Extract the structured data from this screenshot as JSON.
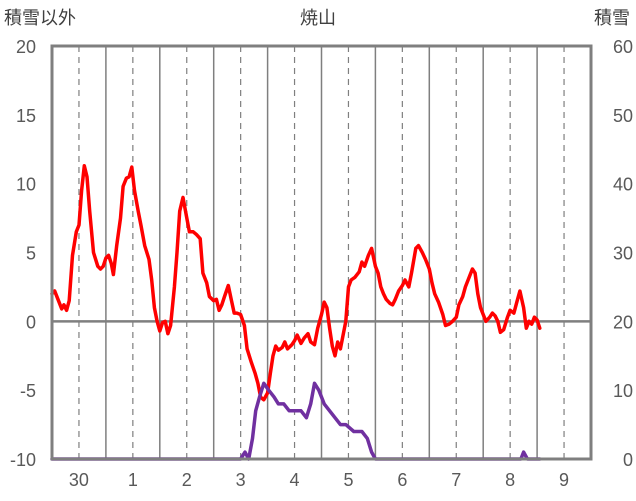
{
  "chart_data": {
    "type": "line",
    "title": "焼山",
    "y_left_label": "積雪以外",
    "y_right_label": "積雪",
    "y_left_range": [
      -10,
      20
    ],
    "y_left_ticks": [
      "20",
      "15",
      "10",
      "5",
      "0",
      "-5",
      "-10"
    ],
    "y_right_range": [
      0,
      60
    ],
    "y_right_ticks": [
      "60",
      "50",
      "40",
      "30",
      "20",
      "10",
      "0"
    ],
    "x_range": [
      29.5,
      9.5
    ],
    "x_tick_labels": [
      "30",
      "1",
      "2",
      "3",
      "4",
      "5",
      "6",
      "7",
      "8",
      "9"
    ],
    "grid": true,
    "legend": "none",
    "series": [
      {
        "key": "temperature",
        "axis": "left",
        "color": "#ff0000",
        "points": [
          [
            0.0,
            2.0
          ],
          [
            0.05,
            2.2
          ],
          [
            0.12,
            1.5
          ],
          [
            0.18,
            0.9
          ],
          [
            0.22,
            1.2
          ],
          [
            0.27,
            0.8
          ],
          [
            0.32,
            1.5
          ],
          [
            0.38,
            4.8
          ],
          [
            0.45,
            6.5
          ],
          [
            0.5,
            7.0
          ],
          [
            0.55,
            9.5
          ],
          [
            0.6,
            11.3
          ],
          [
            0.65,
            10.5
          ],
          [
            0.7,
            8.0
          ],
          [
            0.77,
            5.0
          ],
          [
            0.85,
            4.0
          ],
          [
            0.9,
            3.8
          ],
          [
            0.95,
            4.0
          ],
          [
            1.0,
            4.6
          ],
          [
            1.05,
            4.8
          ],
          [
            1.1,
            4.2
          ],
          [
            1.14,
            3.4
          ],
          [
            1.2,
            5.5
          ],
          [
            1.27,
            7.5
          ],
          [
            1.32,
            9.8
          ],
          [
            1.38,
            10.4
          ],
          [
            1.43,
            10.5
          ],
          [
            1.48,
            11.2
          ],
          [
            1.53,
            9.5
          ],
          [
            1.6,
            8.0
          ],
          [
            1.65,
            7.0
          ],
          [
            1.72,
            5.5
          ],
          [
            1.8,
            4.5
          ],
          [
            1.85,
            3.0
          ],
          [
            1.9,
            1.0
          ],
          [
            1.95,
            0.0
          ],
          [
            2.0,
            -0.7
          ],
          [
            2.05,
            -0.1
          ],
          [
            2.1,
            0.0
          ],
          [
            2.15,
            -0.9
          ],
          [
            2.2,
            -0.3
          ],
          [
            2.27,
            2.5
          ],
          [
            2.32,
            5.0
          ],
          [
            2.37,
            8.0
          ],
          [
            2.43,
            9.0
          ],
          [
            2.5,
            7.5
          ],
          [
            2.55,
            6.5
          ],
          [
            2.62,
            6.5
          ],
          [
            2.68,
            6.3
          ],
          [
            2.75,
            6.0
          ],
          [
            2.8,
            3.5
          ],
          [
            2.87,
            2.8
          ],
          [
            2.92,
            1.8
          ],
          [
            3.0,
            1.5
          ],
          [
            3.05,
            1.6
          ],
          [
            3.1,
            0.8
          ],
          [
            3.15,
            1.2
          ],
          [
            3.2,
            1.8
          ],
          [
            3.27,
            2.6
          ],
          [
            3.33,
            1.5
          ],
          [
            3.38,
            0.6
          ],
          [
            3.43,
            0.6
          ],
          [
            3.5,
            0.5
          ],
          [
            3.57,
            -0.3
          ],
          [
            3.62,
            -2.0
          ],
          [
            3.7,
            -3.0
          ],
          [
            3.77,
            -3.8
          ],
          [
            3.82,
            -4.5
          ],
          [
            3.87,
            -5.5
          ],
          [
            3.93,
            -5.7
          ],
          [
            4.0,
            -5.2
          ],
          [
            4.05,
            -3.8
          ],
          [
            4.1,
            -2.5
          ],
          [
            4.15,
            -1.8
          ],
          [
            4.2,
            -2.1
          ],
          [
            4.27,
            -1.9
          ],
          [
            4.32,
            -1.5
          ],
          [
            4.37,
            -2.0
          ],
          [
            4.45,
            -1.7
          ],
          [
            4.5,
            -1.4
          ],
          [
            4.55,
            -1.0
          ],
          [
            4.62,
            -1.6
          ],
          [
            4.68,
            -1.2
          ],
          [
            4.75,
            -0.9
          ],
          [
            4.8,
            -1.5
          ],
          [
            4.87,
            -1.7
          ],
          [
            4.93,
            -0.5
          ],
          [
            5.0,
            0.5
          ],
          [
            5.05,
            1.4
          ],
          [
            5.1,
            1.0
          ],
          [
            5.15,
            -0.5
          ],
          [
            5.2,
            -1.8
          ],
          [
            5.25,
            -2.5
          ],
          [
            5.3,
            -1.5
          ],
          [
            5.35,
            -2.0
          ],
          [
            5.4,
            -1.0
          ],
          [
            5.45,
            0.0
          ],
          [
            5.5,
            2.5
          ],
          [
            5.55,
            3.0
          ],
          [
            5.62,
            3.2
          ],
          [
            5.7,
            3.6
          ],
          [
            5.75,
            4.3
          ],
          [
            5.8,
            4.0
          ],
          [
            5.87,
            4.8
          ],
          [
            5.93,
            5.3
          ],
          [
            6.0,
            4.0
          ],
          [
            6.05,
            3.5
          ],
          [
            6.1,
            2.5
          ],
          [
            6.15,
            2.0
          ],
          [
            6.2,
            1.6
          ],
          [
            6.27,
            1.3
          ],
          [
            6.32,
            1.2
          ],
          [
            6.37,
            1.6
          ],
          [
            6.43,
            2.2
          ],
          [
            6.5,
            2.6
          ],
          [
            6.55,
            3.0
          ],
          [
            6.62,
            2.5
          ],
          [
            6.67,
            3.5
          ],
          [
            6.75,
            5.3
          ],
          [
            6.8,
            5.5
          ],
          [
            6.87,
            5.0
          ],
          [
            6.93,
            4.5
          ],
          [
            7.0,
            3.8
          ],
          [
            7.05,
            2.8
          ],
          [
            7.1,
            2.0
          ],
          [
            7.17,
            1.4
          ],
          [
            7.25,
            0.5
          ],
          [
            7.3,
            -0.3
          ],
          [
            7.37,
            -0.2
          ],
          [
            7.43,
            0.0
          ],
          [
            7.5,
            0.3
          ],
          [
            7.55,
            1.2
          ],
          [
            7.62,
            1.8
          ],
          [
            7.67,
            2.5
          ],
          [
            7.75,
            3.3
          ],
          [
            7.8,
            3.8
          ],
          [
            7.85,
            3.5
          ],
          [
            7.9,
            2.0
          ],
          [
            7.95,
            1.0
          ],
          [
            8.0,
            0.5
          ],
          [
            8.05,
            0.0
          ],
          [
            8.12,
            0.3
          ],
          [
            8.17,
            0.6
          ],
          [
            8.22,
            0.4
          ],
          [
            8.27,
            0.0
          ],
          [
            8.32,
            -0.8
          ],
          [
            8.38,
            -0.6
          ],
          [
            8.45,
            0.3
          ],
          [
            8.5,
            0.8
          ],
          [
            8.57,
            0.6
          ],
          [
            8.63,
            1.5
          ],
          [
            8.68,
            2.2
          ],
          [
            8.75,
            1.0
          ],
          [
            8.8,
            -0.5
          ],
          [
            8.85,
            0.0
          ],
          [
            8.9,
            -0.2
          ],
          [
            8.95,
            0.3
          ],
          [
            9.0,
            0.1
          ],
          [
            9.05,
            -0.5
          ]
        ]
      },
      {
        "key": "snow_depth",
        "axis": "right",
        "color": "#7030a0",
        "points": [
          [
            0.0,
            0
          ],
          [
            3.5,
            0
          ],
          [
            3.58,
            1
          ],
          [
            3.65,
            0
          ],
          [
            3.72,
            3
          ],
          [
            3.78,
            7
          ],
          [
            3.85,
            9
          ],
          [
            3.93,
            11
          ],
          [
            4.02,
            10
          ],
          [
            4.12,
            9
          ],
          [
            4.2,
            8
          ],
          [
            4.3,
            8
          ],
          [
            4.4,
            7
          ],
          [
            4.5,
            7
          ],
          [
            4.62,
            7
          ],
          [
            4.72,
            6
          ],
          [
            4.8,
            8
          ],
          [
            4.87,
            11
          ],
          [
            4.95,
            10
          ],
          [
            5.05,
            8
          ],
          [
            5.15,
            7
          ],
          [
            5.25,
            6
          ],
          [
            5.35,
            5
          ],
          [
            5.45,
            5
          ],
          [
            5.6,
            4
          ],
          [
            5.75,
            4
          ],
          [
            5.85,
            3
          ],
          [
            5.93,
            1
          ],
          [
            6.0,
            0
          ],
          [
            8.7,
            0
          ],
          [
            8.75,
            1
          ],
          [
            8.82,
            0
          ],
          [
            9.05,
            0
          ]
        ]
      }
    ]
  }
}
